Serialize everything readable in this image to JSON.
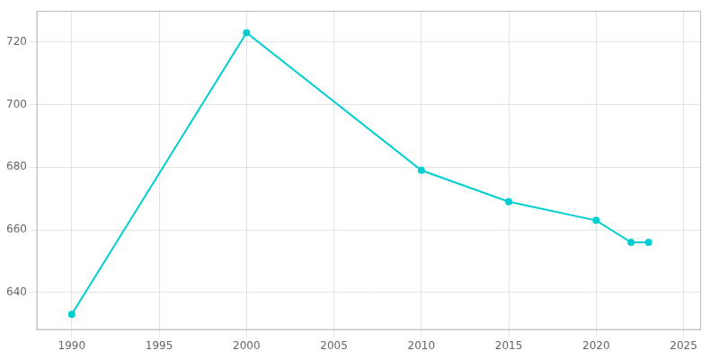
{
  "chart_data": {
    "type": "line",
    "x": [
      1990,
      2000,
      2010,
      2015,
      2020,
      2022,
      2023
    ],
    "values": [
      633,
      723,
      679,
      669,
      663,
      656,
      656
    ],
    "color": "#00CED1",
    "marker": "circle",
    "xlim": [
      1988,
      2026
    ],
    "xticks": [
      1990,
      1995,
      2000,
      2005,
      2010,
      2015,
      2020,
      2025
    ],
    "ylim": [
      628,
      730
    ],
    "yticks": [
      640,
      660,
      680,
      700,
      720
    ],
    "grid": true
  }
}
